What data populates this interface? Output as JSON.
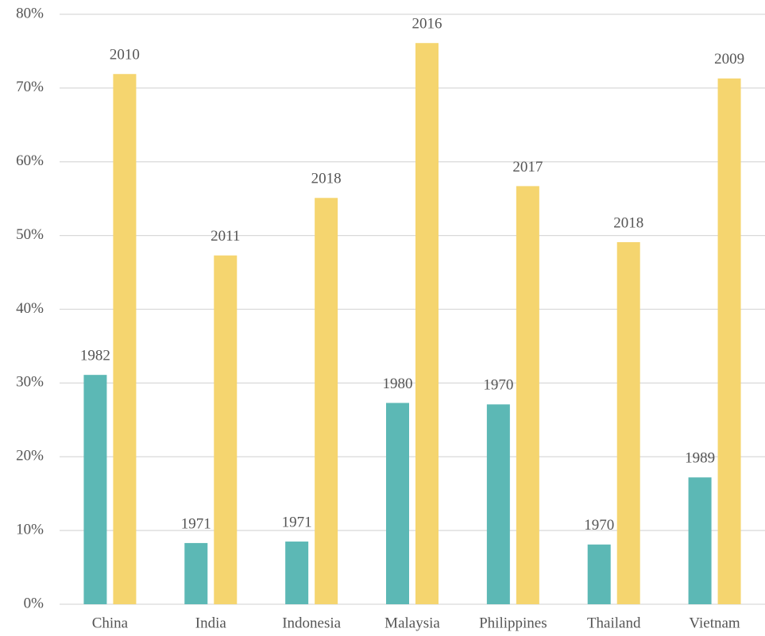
{
  "chart_data": {
    "type": "bar",
    "categories": [
      "China",
      "India",
      "Indonesia",
      "Malaysia",
      "Philippines",
      "Thailand",
      "Vietnam"
    ],
    "series": [
      {
        "color": "#5cb8b5",
        "values": [
          31.1,
          8.3,
          8.5,
          27.3,
          27.1,
          8.1,
          17.2
        ],
        "labels": [
          "1982",
          "1971",
          "1971",
          "1980",
          "1970",
          "1970",
          "1989"
        ]
      },
      {
        "color": "#f5d56f",
        "values": [
          71.9,
          47.3,
          55.1,
          76.1,
          56.7,
          49.1,
          71.3
        ],
        "labels": [
          "2010",
          "2011",
          "2018",
          "2016",
          "2017",
          "2018",
          "2009"
        ]
      }
    ],
    "ylim": [
      0,
      80
    ],
    "yticks": [
      {
        "value": 0,
        "label": "0%"
      },
      {
        "value": 10,
        "label": "10%"
      },
      {
        "value": 20,
        "label": "20%"
      },
      {
        "value": 30,
        "label": "30%"
      },
      {
        "value": 40,
        "label": "40%"
      },
      {
        "value": 50,
        "label": "50%"
      },
      {
        "value": 60,
        "label": "60%"
      },
      {
        "value": 70,
        "label": "70%"
      },
      {
        "value": 80,
        "label": "80%"
      }
    ],
    "grid": true
  }
}
